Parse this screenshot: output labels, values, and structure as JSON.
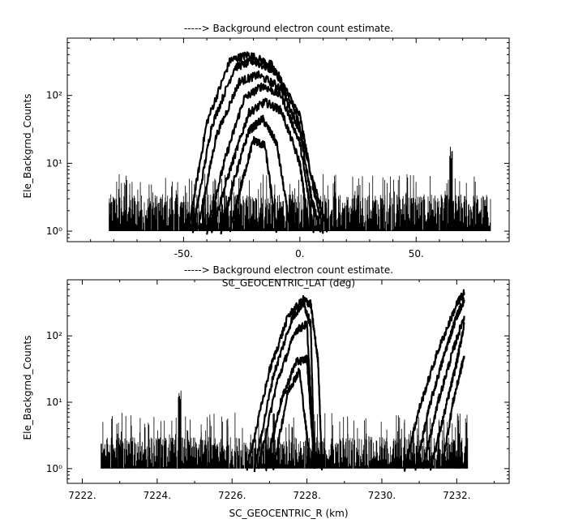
{
  "chart_data": [
    {
      "type": "line",
      "title": "-----> Background electron count estimate.",
      "xlabel": "SC_GEOCENTRIC_LAT (deg)",
      "ylabel": "Ele_Backgrnd_Counts",
      "y_scale": "log",
      "xlim": [
        -100,
        90
      ],
      "ylim": [
        0.7,
        700
      ],
      "xticks": [
        -50,
        0,
        50
      ],
      "xtick_labels": [
        "-50.",
        "0.",
        "50."
      ],
      "yticks": [
        1,
        10,
        100
      ],
      "ytick_labels": [
        "10⁰",
        "10¹",
        "10²"
      ],
      "noise_floor": {
        "x_range": [
          -82,
          82
        ],
        "y_range": [
          1,
          3.5
        ]
      },
      "series": [
        {
          "x": [
            -48,
            -40,
            -30,
            -22,
            -12,
            -2,
            6,
            12
          ],
          "y": [
            1,
            40,
            330,
            400,
            280,
            60,
            5,
            1
          ]
        },
        {
          "x": [
            -46,
            -38,
            -28,
            -20,
            -10,
            0,
            6,
            10
          ],
          "y": [
            1,
            35,
            260,
            320,
            220,
            50,
            4,
            1
          ]
        },
        {
          "x": [
            -44,
            -36,
            -26,
            -18,
            -8,
            0,
            5,
            9
          ],
          "y": [
            1,
            25,
            160,
            200,
            130,
            30,
            3,
            1
          ]
        },
        {
          "x": [
            -40,
            -32,
            -24,
            -16,
            -8,
            0,
            6
          ],
          "y": [
            1,
            12,
            90,
            140,
            100,
            20,
            1
          ]
        },
        {
          "x": [
            -38,
            -30,
            -22,
            -15,
            -8,
            0,
            4
          ],
          "y": [
            1,
            8,
            55,
            80,
            60,
            10,
            1
          ]
        },
        {
          "x": [
            -34,
            -28,
            -22,
            -16,
            -10,
            -4
          ],
          "y": [
            1,
            6,
            30,
            45,
            20,
            1
          ]
        },
        {
          "x": [
            -30,
            -25,
            -20,
            -15,
            -10
          ],
          "y": [
            1,
            5,
            22,
            18,
            1
          ]
        }
      ],
      "spikes": [
        {
          "x": 65,
          "y": 18
        }
      ]
    },
    {
      "type": "line",
      "title": "-----> Background electron count estimate.",
      "xlabel": "SC_GEOCENTRIC_R (km)",
      "ylabel": "Ele_Backgrnd_Counts",
      "y_scale": "log",
      "xlim": [
        7221.6,
        7233.4
      ],
      "ylim": [
        0.6,
        700
      ],
      "xticks": [
        7222,
        7224,
        7226,
        7228,
        7230,
        7232
      ],
      "xtick_labels": [
        "7222.",
        "7224.",
        "7226.",
        "7228.",
        "7230.",
        "7232."
      ],
      "yticks": [
        1,
        10,
        100
      ],
      "ytick_labels": [
        "10⁰",
        "10¹",
        "10²"
      ],
      "noise_floor": {
        "x_range": [
          7222.5,
          7232.3
        ],
        "y_range": [
          1,
          3
        ]
      },
      "series": [
        {
          "x": [
            7226.4,
            7227.0,
            7227.5,
            7227.9,
            7228.1,
            7228.3,
            7228.4
          ],
          "y": [
            1,
            30,
            200,
            350,
            300,
            40,
            1
          ]
        },
        {
          "x": [
            7226.6,
            7227.1,
            7227.6,
            7227.9,
            7228.1,
            7228.2
          ],
          "y": [
            1,
            25,
            180,
            320,
            150,
            1
          ]
        },
        {
          "x": [
            7226.7,
            7227.2,
            7227.7,
            7228.0,
            7228.2
          ],
          "y": [
            1,
            20,
            120,
            150,
            1
          ]
        },
        {
          "x": [
            7226.9,
            7227.3,
            7227.7,
            7228.0,
            7228.2
          ],
          "y": [
            1,
            10,
            40,
            45,
            1
          ]
        },
        {
          "x": [
            7227.1,
            7227.5,
            7227.8,
            7228.1
          ],
          "y": [
            1,
            15,
            30,
            1
          ]
        },
        {
          "x": [
            7230.6,
            7231.0,
            7231.5,
            7232.0,
            7232.2
          ],
          "y": [
            1,
            8,
            60,
            300,
            450
          ]
        },
        {
          "x": [
            7230.9,
            7231.3,
            7231.7,
            7232.0,
            7232.2
          ],
          "y": [
            1,
            10,
            60,
            200,
            350
          ]
        },
        {
          "x": [
            7231.1,
            7231.5,
            7231.9,
            7232.2
          ],
          "y": [
            1,
            10,
            60,
            200
          ]
        },
        {
          "x": [
            7231.3,
            7231.7,
            7232.0,
            7232.2
          ],
          "y": [
            1,
            8,
            40,
            150
          ]
        },
        {
          "x": [
            7231.6,
            7231.9,
            7232.2
          ],
          "y": [
            1,
            10,
            50
          ]
        }
      ],
      "spikes": [
        {
          "x": 7224.6,
          "y": 18
        }
      ]
    }
  ]
}
